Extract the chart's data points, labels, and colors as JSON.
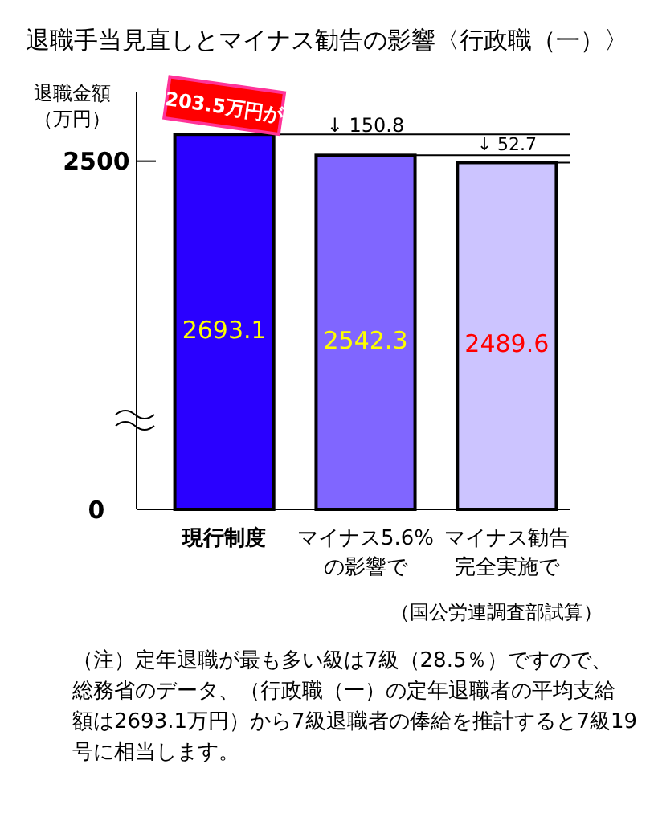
{
  "chart_data": {
    "type": "bar",
    "title": "退職手当見直しとマイナス勧告の影響〈行政職（一）〉",
    "ylabel": "退職金額（万円）",
    "categories": [
      "現行制度",
      "マイナス5.6%の影響で",
      "マイナス勧告完全実施で"
    ],
    "values": [
      2693.1,
      2542.3,
      2489.6
    ],
    "colors": [
      "#2a00ff",
      "#8066ff",
      "#ccc4ff"
    ],
    "data_labels": true,
    "ylim": [
      0,
      3000
    ],
    "yticks": [
      0,
      2500
    ],
    "ref_lines": [
      {
        "axis": "y",
        "value": 2693.1
      },
      {
        "axis": "y",
        "value": 2542.3
      },
      {
        "axis": "y",
        "value": 2489.6
      }
    ],
    "annotations": [
      "203.5万円が",
      "↓ 150.8",
      "↓ 52.7",
      "（国公労連調査部試算）",
      "（注）定年退職が最も多い級は7級（28.5％）ですので、総務省のデータ、（行政職（一）の定年退職者の平均支給額は2693.1万円）から7級退職者の俸給を推計すると7級19号に相当します。"
    ]
  }
}
